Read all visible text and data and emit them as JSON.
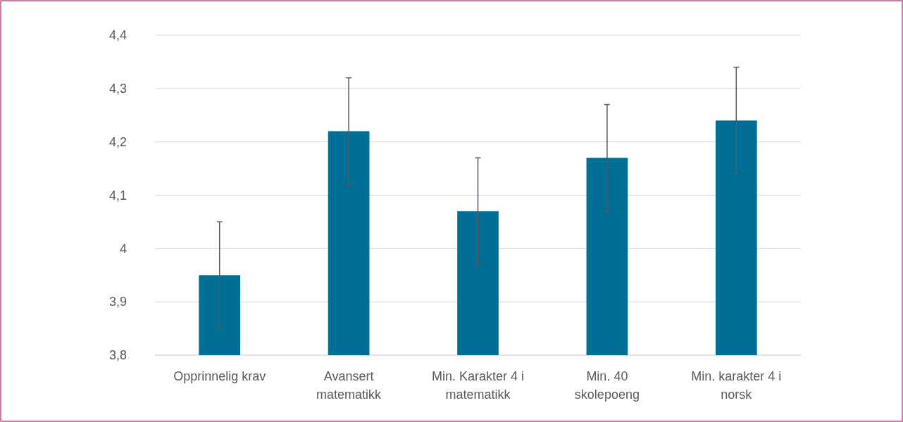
{
  "chart_data": {
    "type": "bar",
    "categories": [
      "Opprinnelig krav",
      "Avansert matematikk",
      "Min. Karakter 4 i matematikk",
      "Min. 40 skolepoeng",
      "Min. karakter 4 i norsk"
    ],
    "values": [
      3.95,
      4.22,
      4.07,
      4.17,
      4.24
    ],
    "errors": [
      0.1,
      0.1,
      0.1,
      0.1,
      0.1
    ],
    "color": "#006f96",
    "ylim": [
      3.8,
      4.4
    ],
    "yticks": [
      {
        "value": 3.8,
        "label": "3,8"
      },
      {
        "value": 3.9,
        "label": "3,9"
      },
      4,
      {
        "value": 4.1,
        "label": "4,1"
      },
      {
        "value": 4.2,
        "label": "4,2"
      },
      {
        "value": 4.3,
        "label": "4,3"
      },
      {
        "value": 4.4,
        "label": "4,4"
      }
    ],
    "grid": "y"
  }
}
